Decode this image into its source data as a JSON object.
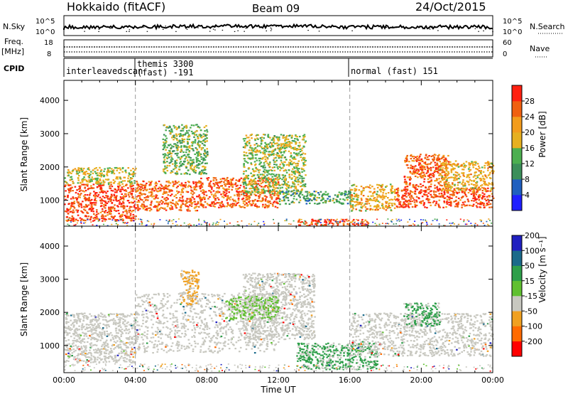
{
  "header": {
    "station": "Hokkaido (fitACF)",
    "beam": "Beam 09",
    "date": "24/Oct/2015"
  },
  "strip_labels": {
    "nsky": "N.Sky",
    "nsky_top": "10^5",
    "nsky_bottom": "10^0",
    "freq": "Freq.",
    "freq_unit": "[MHz]",
    "freq_top": "18",
    "freq_bottom": "8",
    "cpid": "CPID",
    "nsearch": "N.Search",
    "nsearch_top": "10^5",
    "nsearch_bottom": "10^0",
    "nave": "Nave",
    "nave_top": "60",
    "nave_bottom": "0"
  },
  "cpid_segments": [
    {
      "label": "interleavedscan",
      "start": "00:00"
    },
    {
      "label": "themis 3300",
      "label2": "(fast) -191",
      "start": "04:00"
    },
    {
      "label": "normal (fast) 151",
      "start": "16:00"
    }
  ],
  "colors": {
    "power": [
      "#1f1fff",
      "#1f5fbf",
      "#3c8f5a",
      "#4caf50",
      "#e6b020",
      "#f39c1c",
      "#f06010",
      "#ff2010"
    ],
    "velocity": [
      "#ff0000",
      "#ff6a00",
      "#f0a020",
      "#c8c8c0",
      "#60c030",
      "#2e9f4a",
      "#1a6a8a",
      "#2020c0"
    ],
    "ground": "#c8c8c0"
  },
  "chart_data": [
    {
      "type": "heatmap",
      "name": "power-panel",
      "ylabel": "Slant Range [km]",
      "xlabel": "Time UT",
      "x_ticks": [
        "00:00",
        "04:00",
        "08:00",
        "12:00",
        "16:00",
        "20:00",
        "00:00"
      ],
      "y_ticks": [
        "1000",
        "2000",
        "3000",
        "4000"
      ],
      "x_range_hours": [
        0,
        24
      ],
      "y_range_km": [
        180,
        4600
      ],
      "colorbar_label": "Power [dB]",
      "colorbar_ticks": [
        "4",
        "8",
        "12",
        "16",
        "20",
        "24",
        "28"
      ],
      "colorbar_range": [
        0,
        32
      ],
      "dashed_lines_hours": [
        4,
        16
      ],
      "bands": [
        {
          "t0": 0.0,
          "t1": 4.0,
          "r0": 400,
          "r1": 1500,
          "level": 28
        },
        {
          "t0": 0.0,
          "t1": 4.0,
          "r0": 1500,
          "r1": 2000,
          "level": 18
        },
        {
          "t0": 4.0,
          "t1": 7.5,
          "r0": 700,
          "r1": 1600,
          "level": 26
        },
        {
          "t0": 5.5,
          "t1": 8.0,
          "r0": 1800,
          "r1": 3300,
          "level": 14
        },
        {
          "t0": 7.5,
          "t1": 12.0,
          "r0": 800,
          "r1": 1700,
          "level": 26
        },
        {
          "t0": 10.0,
          "t1": 13.5,
          "r0": 1200,
          "r1": 3000,
          "level": 16
        },
        {
          "t0": 12.0,
          "t1": 16.0,
          "r0": 900,
          "r1": 1300,
          "level": 12
        },
        {
          "t0": 13.0,
          "t1": 17.0,
          "r0": 250,
          "r1": 450,
          "level": 28
        },
        {
          "t0": 16.0,
          "t1": 18.5,
          "r0": 700,
          "r1": 1500,
          "level": 20
        },
        {
          "t0": 18.5,
          "t1": 24.0,
          "r0": 800,
          "r1": 1400,
          "level": 28
        },
        {
          "t0": 19.0,
          "t1": 21.5,
          "r0": 1400,
          "r1": 2400,
          "level": 26
        },
        {
          "t0": 21.0,
          "t1": 24.0,
          "r0": 1300,
          "r1": 2200,
          "level": 20
        }
      ]
    },
    {
      "type": "heatmap",
      "name": "velocity-panel",
      "ylabel": "Slant Range [km]",
      "xlabel": "Time UT",
      "x_ticks": [
        "00:00",
        "04:00",
        "08:00",
        "12:00",
        "16:00",
        "20:00",
        "00:00"
      ],
      "y_ticks": [
        "1000",
        "2000",
        "3000",
        "4000"
      ],
      "x_range_hours": [
        0,
        24
      ],
      "y_range_km": [
        180,
        4600
      ],
      "colorbar_label": "Velocity [m s⁻¹]",
      "colorbar_ticks": [
        "-200",
        "-100",
        "-50",
        "-15",
        "15",
        "50",
        "100",
        "200"
      ],
      "dashed_lines_hours": [
        4,
        16
      ],
      "bands": [
        {
          "t0": 0.0,
          "t1": 4.0,
          "r0": 500,
          "r1": 2000,
          "level": "ground"
        },
        {
          "t0": 4.0,
          "t1": 12.0,
          "r0": 800,
          "r1": 2600,
          "level": "ground"
        },
        {
          "t0": 6.5,
          "t1": 7.5,
          "r0": 2200,
          "r1": 3300,
          "level": -50
        },
        {
          "t0": 10.0,
          "t1": 14.0,
          "r0": 1200,
          "r1": 3200,
          "level": "ground"
        },
        {
          "t0": 13.0,
          "t1": 17.5,
          "r0": 300,
          "r1": 1100,
          "level": 50
        },
        {
          "t0": 9.0,
          "t1": 12.0,
          "r0": 1800,
          "r1": 2500,
          "level": 15
        },
        {
          "t0": 16.0,
          "t1": 24.0,
          "r0": 700,
          "r1": 2000,
          "level": "ground"
        },
        {
          "t0": 19.0,
          "t1": 21.0,
          "r0": 1600,
          "r1": 2300,
          "level": 50
        }
      ]
    }
  ]
}
